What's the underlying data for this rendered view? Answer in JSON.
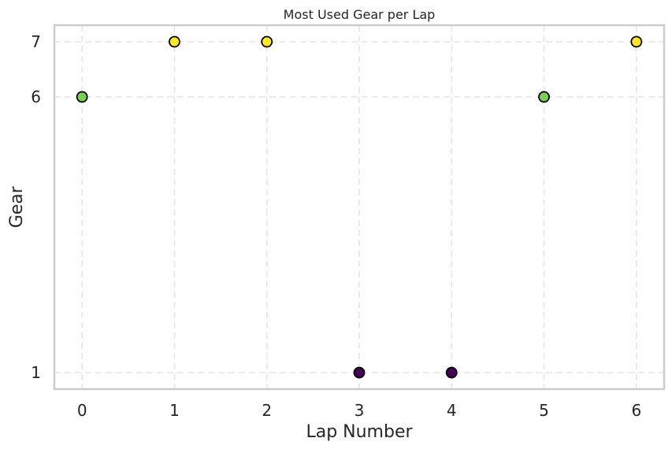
{
  "chart_data": {
    "type": "scatter",
    "title": "Most Used Gear per Lap",
    "xlabel": "Lap Number",
    "ylabel": "Gear",
    "x": [
      0,
      1,
      2,
      3,
      4,
      5,
      6
    ],
    "y": [
      6,
      7,
      7,
      1,
      1,
      6,
      7
    ],
    "point_colors": [
      "#7ad151",
      "#fde725",
      "#fde725",
      "#440154",
      "#440154",
      "#7ad151",
      "#fde725"
    ],
    "xticks": [
      0,
      1,
      2,
      3,
      4,
      5,
      6
    ],
    "yticks": [
      1,
      6,
      7
    ],
    "xlim": [
      -0.3,
      6.3
    ],
    "ylim": [
      0.7,
      7.3
    ],
    "grid": true,
    "colormap": "viridis"
  }
}
